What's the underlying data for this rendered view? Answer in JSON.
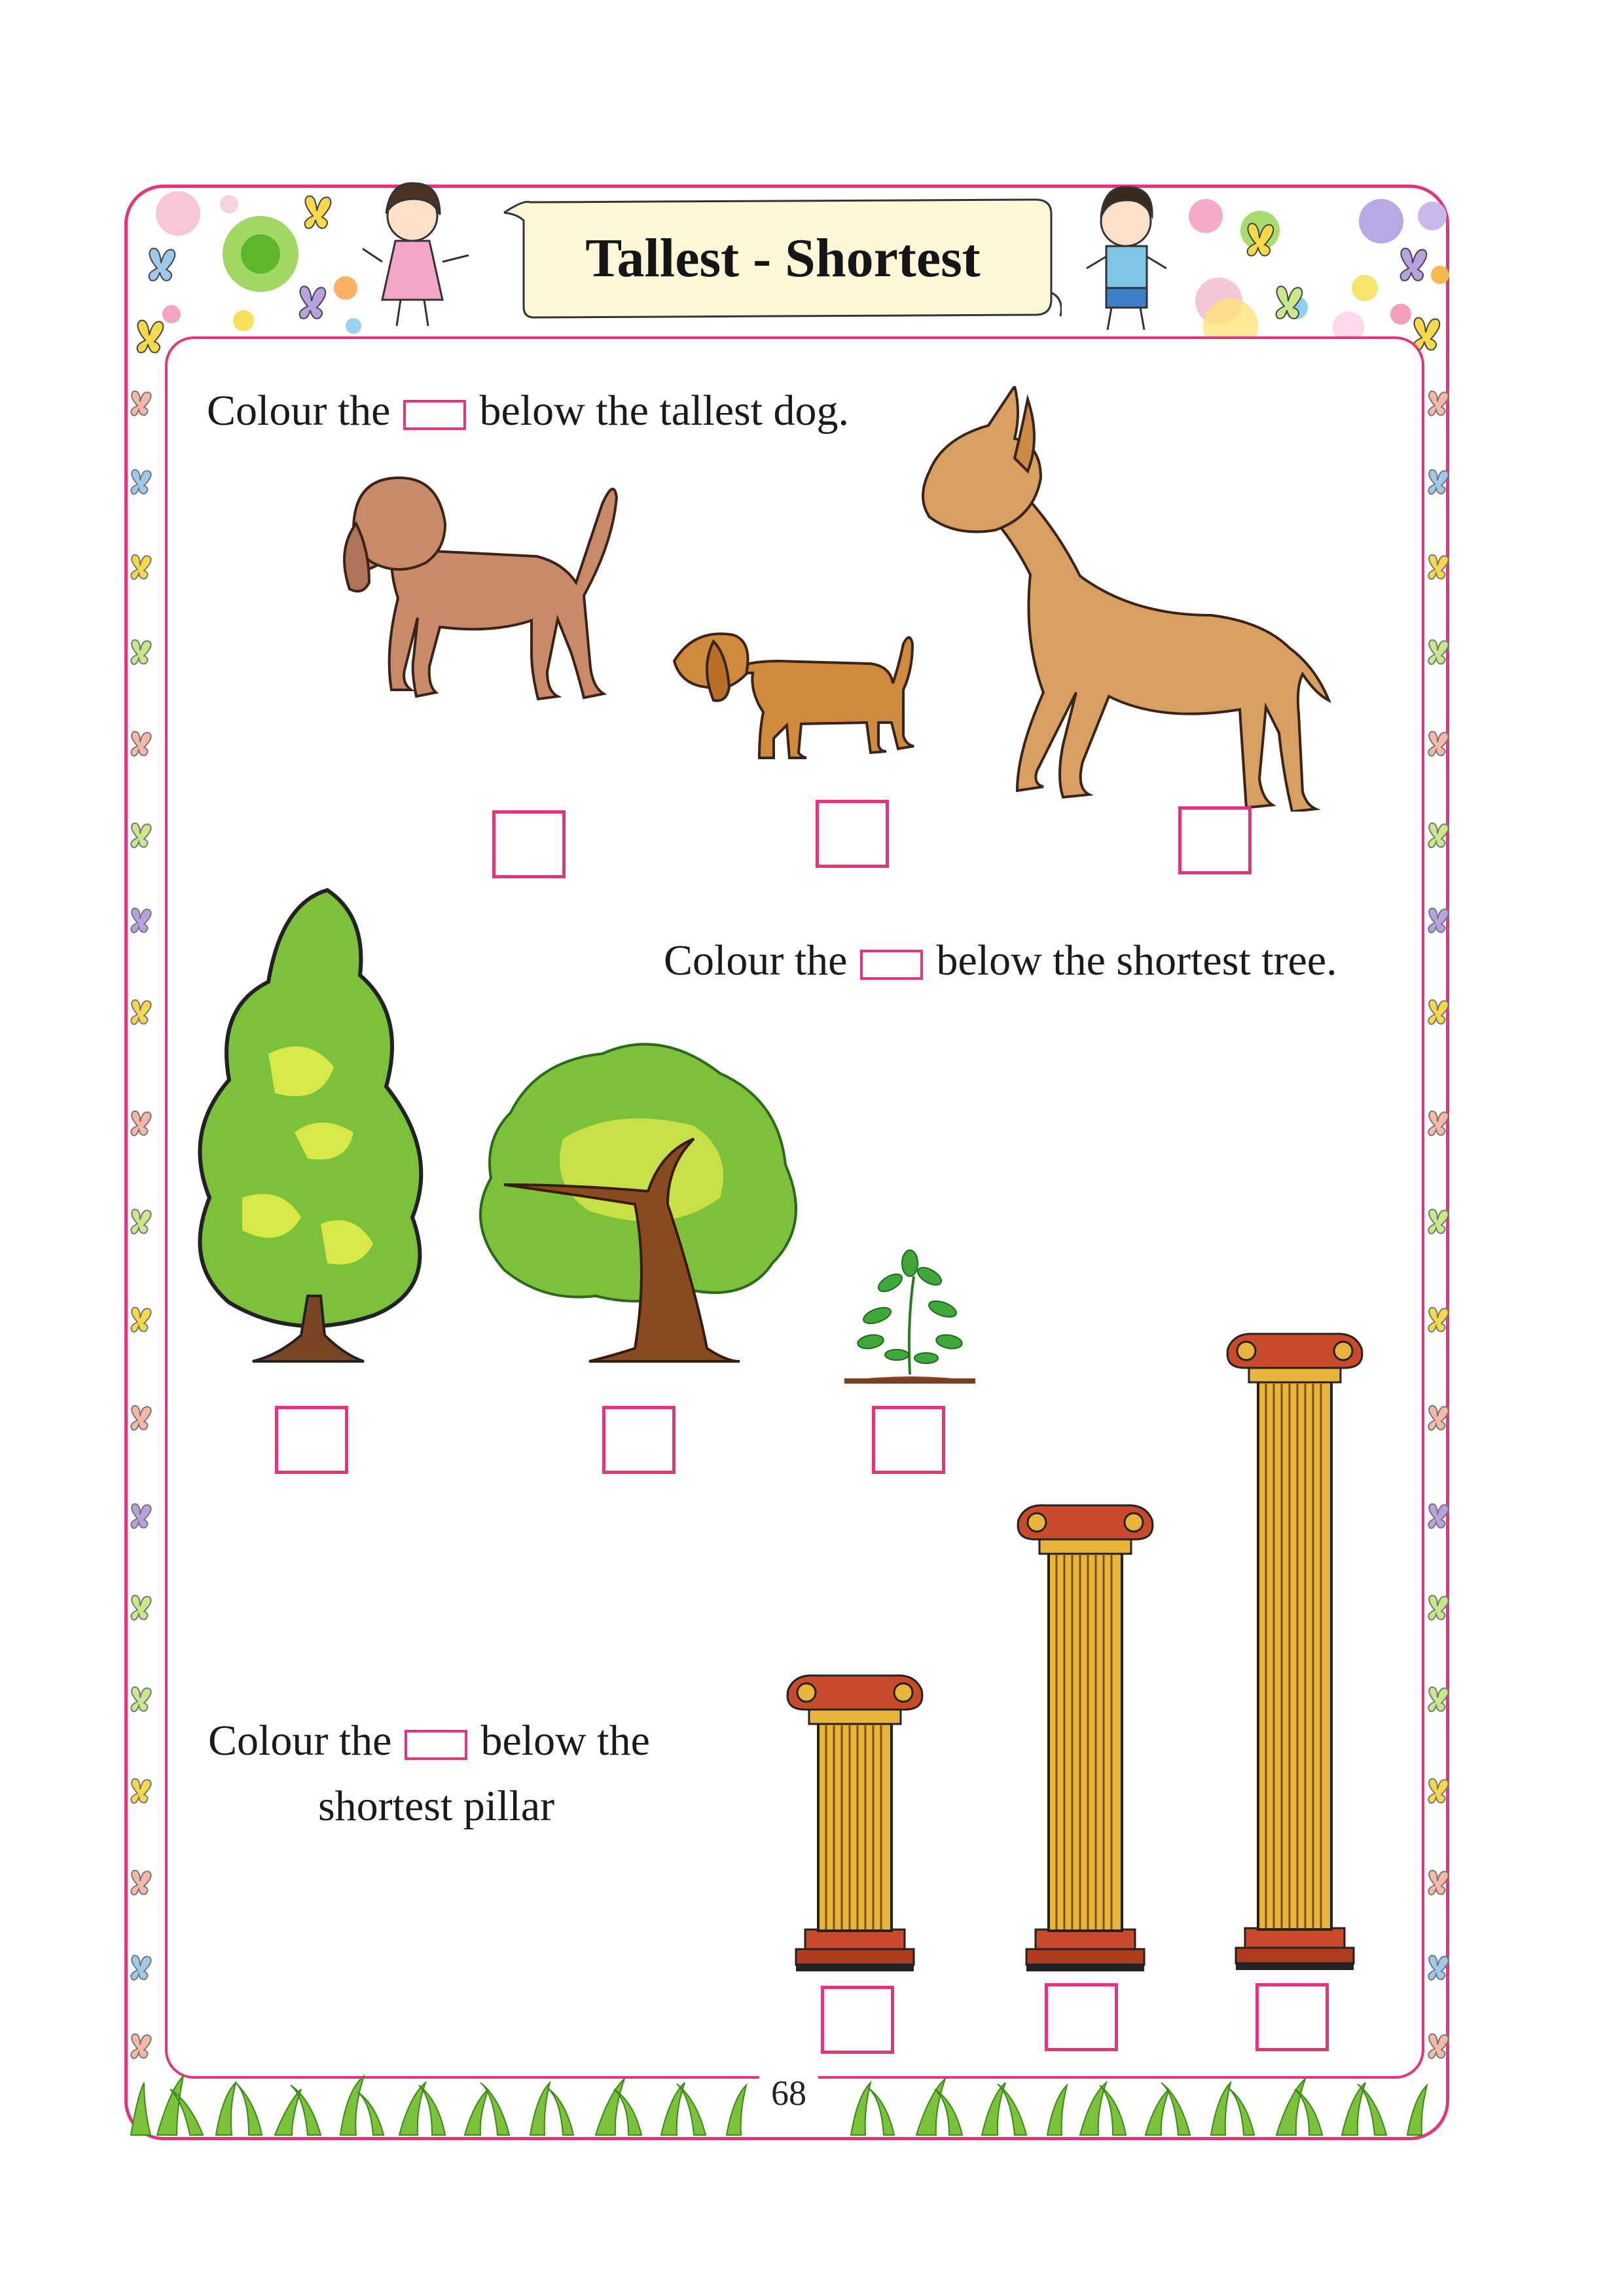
{
  "title": "Tallest - Shortest",
  "sections": {
    "dogs": {
      "prefix": "Colour the",
      "suffix": "below the tallest dog."
    },
    "trees": {
      "prefix": "Colour the",
      "suffix": "below the shortest tree."
    },
    "pillars": {
      "prefix": "Colour the",
      "suffix": "below the",
      "line2": "shortest pillar"
    }
  },
  "page_number": "68",
  "colors": {
    "border": "#e4347e",
    "banner_fill": "#fdf7d8",
    "dog_brown": "#c98a6a",
    "dog_tan": "#d8a060",
    "tree_green": "#7cc13a",
    "pillar_gold": "#e8b43a",
    "pillar_red": "#c94a2a",
    "grass_green": "#7cc13a"
  },
  "icons": [
    "butterfly-icon",
    "girl-illustration",
    "boy-illustration",
    "dog-illustration",
    "tree-illustration",
    "pillar-illustration",
    "grass-border"
  ]
}
